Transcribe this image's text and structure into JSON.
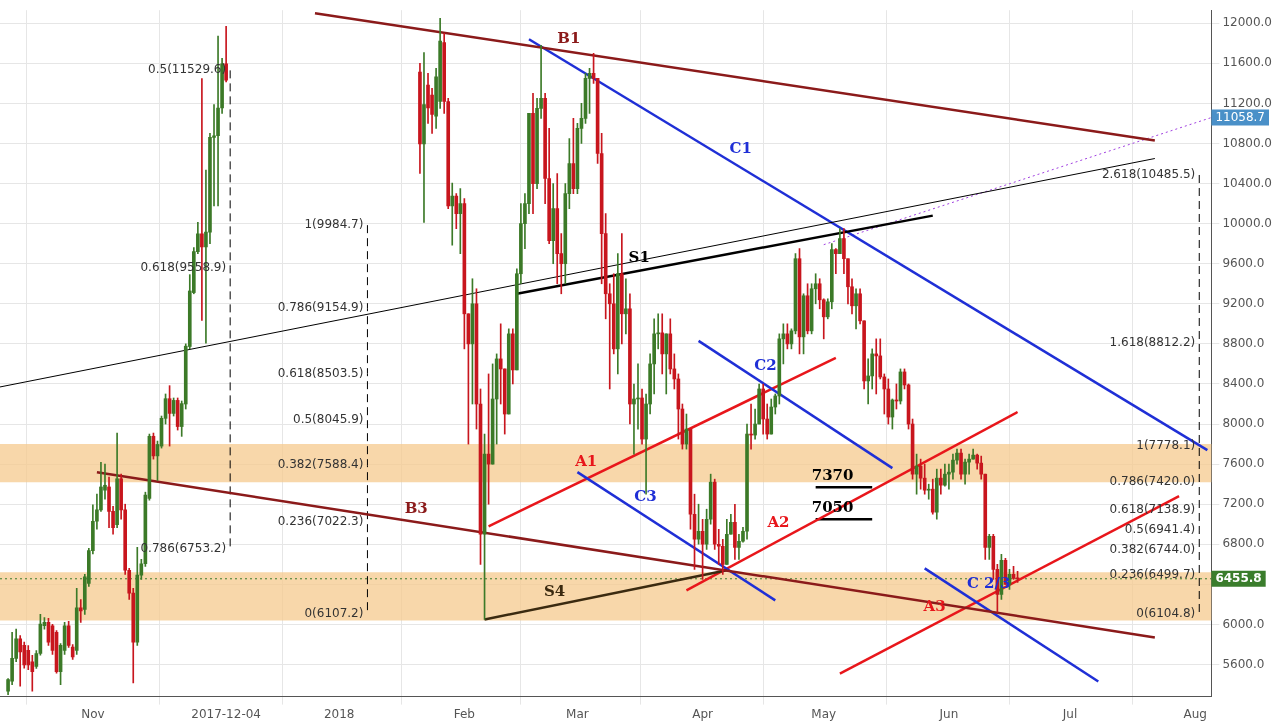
{
  "chart_data": {
    "type": "candlestick",
    "xlim": [
      "2017-10-09",
      "2018-08-05"
    ],
    "ylim": [
      5280,
      12130
    ],
    "xticks": [
      {
        "value": "2017-11-01",
        "label": "Nov"
      },
      {
        "value": "2017-12-04",
        "label": "2017-12-04"
      },
      {
        "value": "2018-01-01",
        "label": "2018"
      },
      {
        "value": "2018-02-01",
        "label": "Feb"
      },
      {
        "value": "2018-03-01",
        "label": "Mar"
      },
      {
        "value": "2018-04-01",
        "label": "Apr"
      },
      {
        "value": "2018-05-01",
        "label": "May"
      },
      {
        "value": "2018-06-01",
        "label": "Jun"
      },
      {
        "value": "2018-07-01",
        "label": "Jul"
      },
      {
        "value": "2018-08-01",
        "label": "Aug"
      }
    ],
    "yticks": [
      {
        "value": 5600,
        "label": "5600.0"
      },
      {
        "value": 6000,
        "label": "6000.0"
      },
      {
        "value": 6400,
        "label": null
      },
      {
        "value": 6800,
        "label": "6800.0"
      },
      {
        "value": 7200,
        "label": "7200.0"
      },
      {
        "value": 7600,
        "label": "7600.0"
      },
      {
        "value": 8000,
        "label": "8000.0"
      },
      {
        "value": 8400,
        "label": "8400.0"
      },
      {
        "value": 8800,
        "label": "8800.0"
      },
      {
        "value": 9200,
        "label": "9200.0"
      },
      {
        "value": 9600,
        "label": "9600.0"
      },
      {
        "value": 10000,
        "label": "10000.0"
      },
      {
        "value": 10400,
        "label": "10400.0"
      },
      {
        "value": 10800,
        "label": "10800.0"
      },
      {
        "value": 11200,
        "label": "11200.0"
      },
      {
        "value": 11600,
        "label": "11600.0"
      },
      {
        "value": 12000,
        "label": "12000.0"
      }
    ],
    "grid": true,
    "legend": false,
    "series": [
      {
        "color": "#3c7a28",
        "x": [
          "2017-10-11",
          "2017-10-12",
          "2017-10-13",
          "2017-10-18",
          "2017-10-19",
          "2017-10-20",
          "2017-10-24",
          "2017-10-25",
          "2017-10-28",
          "2017-10-30",
          "2017-10-31",
          "2017-11-01",
          "2017-11-02",
          "2017-11-03",
          "2017-11-04",
          "2017-11-07",
          "2017-11-12",
          "2017-11-13",
          "2017-11-14",
          "2017-11-15",
          "2017-11-17",
          "2017-11-18",
          "2017-11-19",
          "2017-11-21",
          "2017-11-23",
          "2017-11-24",
          "2017-11-25",
          "2017-11-26",
          "2017-11-27",
          "2017-11-29",
          "2017-11-30",
          "2017-12-01",
          "2017-12-02",
          "2017-12-03",
          "2018-01-22",
          "2018-01-25",
          "2018-01-26",
          "2018-01-29",
          "2018-01-31",
          "2018-02-03",
          "2018-02-06",
          "2018-02-08",
          "2018-02-09",
          "2018-02-12",
          "2018-02-14",
          "2018-02-15",
          "2018-02-16",
          "2018-02-17",
          "2018-02-19",
          "2018-02-20",
          "2018-02-23",
          "2018-02-26",
          "2018-02-27",
          "2018-03-01",
          "2018-03-02",
          "2018-03-03",
          "2018-03-04",
          "2018-03-11",
          "2018-03-13",
          "2018-03-15",
          "2018-03-16",
          "2018-03-18",
          "2018-03-19",
          "2018-03-20",
          "2018-03-21",
          "2018-03-23",
          "2018-03-28",
          "2018-03-31",
          "2018-04-02",
          "2018-04-03",
          "2018-04-07",
          "2018-04-08",
          "2018-04-10",
          "2018-04-11",
          "2018-04-12",
          "2018-04-14",
          "2018-04-15",
          "2018-04-18",
          "2018-04-19",
          "2018-04-20",
          "2018-04-21",
          "2018-04-23",
          "2018-04-24",
          "2018-04-26",
          "2018-04-28",
          "2018-04-29",
          "2018-05-02",
          "2018-05-03",
          "2018-05-05",
          "2018-05-09",
          "2018-05-12",
          "2018-05-13",
          "2018-05-18",
          "2018-05-20",
          "2018-05-24",
          "2018-05-27",
          "2018-05-29",
          "2018-05-31",
          "2018-06-01",
          "2018-06-02",
          "2018-06-03",
          "2018-06-05",
          "2018-06-06",
          "2018-06-07",
          "2018-06-11",
          "2018-06-14",
          "2018-06-16"
        ],
        "ohlc": [
          [
            5335,
            5460,
            5300,
            5449
          ],
          [
            5433,
            5922,
            5400,
            5661
          ],
          [
            5661,
            5954,
            5628,
            5856
          ],
          [
            5580,
            5740,
            5560,
            5710
          ],
          [
            5710,
            6100,
            5693,
            6003
          ],
          [
            5987,
            6068,
            5954,
            6020
          ],
          [
            5530,
            5810,
            5400,
            5791
          ],
          [
            5742,
            6020,
            5700,
            5987
          ],
          [
            5742,
            6360,
            5700,
            6166
          ],
          [
            6150,
            6500,
            6100,
            6476
          ],
          [
            6410,
            6760,
            6380,
            6737
          ],
          [
            6737,
            7193,
            6704,
            7030
          ],
          [
            7030,
            7300,
            6950,
            7144
          ],
          [
            7144,
            7617,
            7128,
            7372
          ],
          [
            7340,
            7600,
            7250,
            7389
          ],
          [
            6997,
            7910,
            6965,
            7454
          ],
          [
            5824,
            6769,
            5790,
            6492
          ],
          [
            6492,
            6650,
            6450,
            6606
          ],
          [
            6606,
            7320,
            6580,
            7291
          ],
          [
            7258,
            7900,
            7240,
            7878
          ],
          [
            7682,
            7830,
            7437,
            7796
          ],
          [
            7780,
            8080,
            7760,
            8057
          ],
          [
            8057,
            8300,
            8000,
            8253
          ],
          [
            8106,
            8260,
            8080,
            8236
          ],
          [
            7975,
            8230,
            7877,
            8204
          ],
          [
            8200,
            8800,
            8150,
            8777
          ],
          [
            8774,
            9491,
            8750,
            9328
          ],
          [
            9312,
            9760,
            9300,
            9720
          ],
          [
            9720,
            10013,
            9700,
            9899
          ],
          [
            9768,
            10535,
            8807,
            9915
          ],
          [
            9915,
            10900,
            9800,
            10861
          ],
          [
            10861,
            11187,
            10176,
            10877
          ],
          [
            10877,
            11871,
            10176,
            11154
          ],
          [
            11154,
            11650,
            11100,
            11594
          ],
          [
            10795,
            11708,
            10013,
            11187
          ],
          [
            11072,
            11550,
            10950,
            11464
          ],
          [
            11219,
            12050,
            11150,
            11822
          ],
          [
            10176,
            10404,
            9785,
            10274
          ],
          [
            10100,
            10350,
            9700,
            10200
          ],
          [
            8800,
            9450,
            8200,
            9200
          ],
          [
            6900,
            7900,
            6050,
            7700
          ],
          [
            7600,
            8600,
            7600,
            8250
          ],
          [
            8250,
            8700,
            7800,
            8650
          ],
          [
            8100,
            8950,
            8100,
            8900
          ],
          [
            8540,
            9550,
            8540,
            9500
          ],
          [
            9500,
            10200,
            9400,
            10000
          ],
          [
            10000,
            10300,
            9750,
            10200
          ],
          [
            10200,
            11100,
            10100,
            11100
          ],
          [
            10400,
            11250,
            10350,
            11150
          ],
          [
            11150,
            11780,
            11050,
            11250
          ],
          [
            9830,
            10400,
            9600,
            10150
          ],
          [
            9600,
            10400,
            9400,
            10300
          ],
          [
            10300,
            10850,
            10150,
            10600
          ],
          [
            10350,
            11000,
            10300,
            10950
          ],
          [
            10950,
            11200,
            10800,
            11050
          ],
          [
            11050,
            11500,
            11000,
            11450
          ],
          [
            11450,
            11550,
            11100,
            11500
          ],
          [
            8750,
            9700,
            8500,
            9500
          ],
          [
            9100,
            9450,
            8900,
            9150
          ],
          [
            8200,
            8400,
            7700,
            8250
          ],
          [
            8250,
            8600,
            7950,
            8260
          ],
          [
            7850,
            8300,
            7300,
            8200
          ],
          [
            8200,
            8700,
            8100,
            8600
          ],
          [
            8600,
            9050,
            8300,
            8900
          ],
          [
            8900,
            9100,
            8750,
            8910
          ],
          [
            8700,
            8900,
            8300,
            8900
          ],
          [
            7800,
            8100,
            7750,
            7950
          ],
          [
            6850,
            7200,
            6800,
            6930
          ],
          [
            6800,
            7150,
            6750,
            7050
          ],
          [
            7050,
            7500,
            7000,
            7420
          ],
          [
            6600,
            7050,
            6600,
            6900
          ],
          [
            6900,
            7100,
            6900,
            7020
          ],
          [
            6770,
            6900,
            6650,
            6830
          ],
          [
            6830,
            6970,
            6820,
            6930
          ],
          [
            6930,
            8000,
            6850,
            7900
          ],
          [
            7890,
            8150,
            7850,
            8000
          ],
          [
            8000,
            8400,
            8000,
            8350
          ],
          [
            7900,
            8250,
            7900,
            8170
          ],
          [
            8170,
            8300,
            8100,
            8280
          ],
          [
            8280,
            8900,
            8200,
            8850
          ],
          [
            8850,
            9000,
            8600,
            8900
          ],
          [
            8800,
            8950,
            8750,
            8930
          ],
          [
            8930,
            9700,
            8900,
            9650
          ],
          [
            8870,
            9300,
            8700,
            9280
          ],
          [
            8930,
            9400,
            8900,
            9350
          ],
          [
            9350,
            9500,
            9200,
            9400
          ],
          [
            9070,
            9250,
            9050,
            9220
          ],
          [
            9220,
            9800,
            9150,
            9740
          ],
          [
            9700,
            9950,
            9700,
            9850
          ],
          [
            9180,
            9350,
            8950,
            9300
          ],
          [
            8430,
            8650,
            8200,
            8480
          ],
          [
            8480,
            8750,
            8350,
            8700
          ],
          [
            8070,
            8250,
            7950,
            8240
          ],
          [
            8230,
            8550,
            8200,
            8520
          ],
          [
            7500,
            7700,
            7300,
            7580
          ],
          [
            7340,
            7400,
            7250,
            7350
          ],
          [
            7120,
            7550,
            7050,
            7460
          ],
          [
            7390,
            7600,
            7380,
            7500
          ],
          [
            7500,
            7600,
            7350,
            7520
          ],
          [
            7520,
            7700,
            7450,
            7640
          ],
          [
            7640,
            7750,
            7600,
            7710
          ],
          [
            7500,
            7650,
            7400,
            7620
          ],
          [
            7620,
            7700,
            7500,
            7650
          ],
          [
            7650,
            7750,
            7650,
            7690
          ],
          [
            6770,
            6900,
            6650,
            6880
          ],
          [
            6300,
            6700,
            6250,
            6640
          ],
          [
            6400,
            6550,
            6350,
            6500
          ]
        ]
      },
      {
        "color": "#c8161e",
        "x": [
          "2017-10-14",
          "2017-10-15",
          "2017-10-16",
          "2017-10-17",
          "2017-10-21",
          "2017-10-22",
          "2017-10-23",
          "2017-10-26",
          "2017-10-27",
          "2017-10-29",
          "2017-11-05",
          "2017-11-06",
          "2017-11-08",
          "2017-11-09",
          "2017-11-10",
          "2017-11-11",
          "2017-11-16",
          "2017-11-20",
          "2017-11-22",
          "2017-11-28",
          "2017-12-04",
          "2018-01-21",
          "2018-01-23",
          "2018-01-24",
          "2018-01-27",
          "2018-01-28",
          "2018-01-30",
          "2018-02-01",
          "2018-02-02",
          "2018-02-04",
          "2018-02-05",
          "2018-02-07",
          "2018-02-10",
          "2018-02-11",
          "2018-02-13",
          "2018-02-18",
          "2018-02-21",
          "2018-02-22",
          "2018-02-24",
          "2018-02-25",
          "2018-02-28",
          "2018-03-05",
          "2018-03-06",
          "2018-03-07",
          "2018-03-08",
          "2018-03-09",
          "2018-03-10",
          "2018-03-12",
          "2018-03-14",
          "2018-03-17",
          "2018-03-22",
          "2018-03-24",
          "2018-03-25",
          "2018-03-26",
          "2018-03-27",
          "2018-03-29",
          "2018-03-30",
          "2018-04-01",
          "2018-04-04",
          "2018-04-05",
          "2018-04-06",
          "2018-04-09",
          "2018-04-13",
          "2018-04-16",
          "2018-04-17",
          "2018-04-22",
          "2018-04-25",
          "2018-04-27",
          "2018-04-30",
          "2018-05-01",
          "2018-05-04",
          "2018-05-06",
          "2018-05-07",
          "2018-05-08",
          "2018-05-10",
          "2018-05-11",
          "2018-05-14",
          "2018-05-15",
          "2018-05-16",
          "2018-05-17",
          "2018-05-19",
          "2018-05-21",
          "2018-05-22",
          "2018-05-23",
          "2018-05-25",
          "2018-05-26",
          "2018-05-28",
          "2018-05-30",
          "2018-06-04",
          "2018-06-08",
          "2018-06-09",
          "2018-06-10",
          "2018-06-12",
          "2018-06-13",
          "2018-06-15",
          "2018-06-17",
          "2018-06-18"
        ],
        "ohlc": [
          [
            5856,
            5889,
            5384,
            5726
          ],
          [
            5791,
            5824,
            5563,
            5596
          ],
          [
            5742,
            5790,
            5550,
            5596
          ],
          [
            5628,
            5693,
            5335,
            5530
          ],
          [
            6020,
            6060,
            5790,
            5824
          ],
          [
            5987,
            6000,
            5700,
            5742
          ],
          [
            5922,
            5940,
            5514,
            5530
          ],
          [
            5987,
            6030,
            5770,
            5791
          ],
          [
            5775,
            5800,
            5650,
            5677
          ],
          [
            6166,
            6248,
            6020,
            6134
          ],
          [
            7372,
            7470,
            6965,
            7128
          ],
          [
            7128,
            7180,
            6900,
            6965
          ],
          [
            7454,
            7500,
            7050,
            7144
          ],
          [
            7144,
            7200,
            6500,
            6541
          ],
          [
            6541,
            6560,
            6250,
            6313
          ],
          [
            6313,
            6360,
            5416,
            5824
          ],
          [
            7878,
            7910,
            7650,
            7682
          ],
          [
            8253,
            8383,
            7780,
            8106
          ],
          [
            8236,
            8260,
            7940,
            7975
          ],
          [
            9899,
            11447,
            9035,
            9768
          ],
          [
            11594,
            11969,
            11415,
            11431
          ],
          [
            11513,
            11600,
            10500,
            10795
          ],
          [
            11382,
            11500,
            11000,
            11154
          ],
          [
            11284,
            11350,
            10900,
            11089
          ],
          [
            11806,
            11900,
            11100,
            11219
          ],
          [
            11219,
            11250,
            10150,
            10176
          ],
          [
            10274,
            10300,
            9950,
            10100
          ],
          [
            10200,
            10250,
            8750,
            9100
          ],
          [
            9100,
            9100,
            7800,
            8800
          ],
          [
            9200,
            9350,
            7950,
            8200
          ],
          [
            8200,
            8350,
            6600,
            6900
          ],
          [
            7700,
            8500,
            7200,
            7600
          ],
          [
            8650,
            9000,
            8200,
            8550
          ],
          [
            8550,
            8550,
            7900,
            8100
          ],
          [
            8900,
            8950,
            8400,
            8540
          ],
          [
            11100,
            11300,
            10100,
            10400
          ],
          [
            11250,
            11300,
            10200,
            10450
          ],
          [
            10450,
            10950,
            9800,
            9830
          ],
          [
            10150,
            10500,
            9400,
            9700
          ],
          [
            9700,
            9900,
            9300,
            9600
          ],
          [
            10600,
            11050,
            10300,
            10350
          ],
          [
            11500,
            11700,
            11400,
            11450
          ],
          [
            11450,
            11450,
            10600,
            10700
          ],
          [
            10700,
            10900,
            9400,
            9900
          ],
          [
            9900,
            10100,
            9050,
            9300
          ],
          [
            9300,
            9400,
            8350,
            9200
          ],
          [
            9200,
            9500,
            8700,
            8750
          ],
          [
            9500,
            9900,
            8800,
            9100
          ],
          [
            9150,
            9300,
            8000,
            8200
          ],
          [
            8260,
            8350,
            7800,
            7850
          ],
          [
            8910,
            9100,
            8500,
            8700
          ],
          [
            8900,
            9050,
            8500,
            8550
          ],
          [
            8550,
            8700,
            8350,
            8450
          ],
          [
            8450,
            8500,
            7850,
            8150
          ],
          [
            8150,
            8200,
            7750,
            7800
          ],
          [
            7950,
            7950,
            6950,
            7100
          ],
          [
            7100,
            7300,
            6550,
            6850
          ],
          [
            6930,
            7050,
            6450,
            6800
          ],
          [
            7420,
            7450,
            6750,
            6800
          ],
          [
            6800,
            6950,
            6600,
            6780
          ],
          [
            6780,
            6850,
            6500,
            6600
          ],
          [
            7020,
            7200,
            6650,
            6770
          ],
          [
            7900,
            8200,
            7750,
            7890
          ],
          [
            8350,
            8400,
            7900,
            8050
          ],
          [
            8050,
            8200,
            7850,
            7900
          ],
          [
            8900,
            9000,
            8750,
            8800
          ],
          [
            9650,
            9750,
            8700,
            8870
          ],
          [
            9280,
            9400,
            8900,
            8930
          ],
          [
            9400,
            9450,
            9150,
            9240
          ],
          [
            9240,
            9250,
            8850,
            9070
          ],
          [
            9740,
            9750,
            9500,
            9700
          ],
          [
            9850,
            9950,
            9500,
            9650
          ],
          [
            9650,
            9650,
            9200,
            9370
          ],
          [
            9370,
            9450,
            9100,
            9180
          ],
          [
            9300,
            9350,
            9000,
            9030
          ],
          [
            9030,
            9030,
            8350,
            8430
          ],
          [
            8700,
            8850,
            8300,
            8680
          ],
          [
            8680,
            8850,
            8450,
            8470
          ],
          [
            8470,
            8500,
            8100,
            8350
          ],
          [
            8350,
            8450,
            8000,
            8070
          ],
          [
            8240,
            8400,
            8150,
            8230
          ],
          [
            8520,
            8550,
            8350,
            8390
          ],
          [
            8390,
            8400,
            7950,
            8000
          ],
          [
            8000,
            8050,
            7450,
            7500
          ],
          [
            7580,
            7650,
            7350,
            7460
          ],
          [
            7460,
            7600,
            7300,
            7340
          ],
          [
            7350,
            7450,
            7100,
            7120
          ],
          [
            7460,
            7550,
            7300,
            7390
          ],
          [
            7710,
            7750,
            7450,
            7500
          ],
          [
            7690,
            7700,
            7550,
            7610
          ],
          [
            7610,
            7680,
            7450,
            7500
          ],
          [
            7500,
            7500,
            6650,
            6770
          ],
          [
            6880,
            6900,
            6450,
            6550
          ],
          [
            6550,
            6600,
            6120,
            6300
          ],
          [
            6640,
            6660,
            6400,
            6400
          ],
          [
            6500,
            6580,
            6450,
            6460
          ],
          [
            6460,
            6530,
            6420,
            6455.8
          ]
        ]
      },
      {
        "type": "line",
        "color": "#000000",
        "x": [
          "2017-10-09",
          "2018-07-22"
        ],
        "values": [
          8370,
          10650
        ]
      },
      {
        "type": "line",
        "name": "B1",
        "color": "#8b1a1a",
        "x": [
          "2017-12-26",
          "2018-07-22"
        ],
        "values": [
          12100,
          10830
        ]
      },
      {
        "type": "line",
        "name": "B3",
        "color": "#8b1a1a",
        "x": [
          "2017-11-02",
          "2018-07-22"
        ],
        "values": [
          7520,
          5870
        ]
      },
      {
        "type": "line",
        "name": "S1",
        "color": "#000000",
        "x": [
          "2018-02-14",
          "2018-05-28"
        ],
        "values": [
          9300,
          10080
        ]
      },
      {
        "type": "line",
        "name": "S4",
        "color": "#3b2a10",
        "x": [
          "2018-02-06",
          "2018-04-07"
        ],
        "values": [
          6050,
          6540
        ]
      },
      {
        "type": "line",
        "name": "C1",
        "color": "#1f2fd6",
        "x": [
          "2018-02-17",
          "2018-08-04"
        ],
        "values": [
          11840,
          7740
        ]
      },
      {
        "type": "line",
        "name": "C2",
        "color": "#1f2fd6",
        "x": [
          "2018-03-31",
          "2018-05-18"
        ],
        "values": [
          8830,
          7560
        ]
      },
      {
        "type": "line",
        "name": "C3",
        "color": "#1f2fd6",
        "x": [
          "2018-03-01",
          "2018-04-19"
        ],
        "values": [
          7520,
          6240
        ]
      },
      {
        "type": "line",
        "name": "C 2/3",
        "color": "#1f2fd6",
        "x": [
          "2018-05-26",
          "2018-07-08"
        ],
        "values": [
          6560,
          5430
        ]
      },
      {
        "type": "line",
        "name": "A1",
        "color": "#e8161b",
        "x": [
          "2018-02-07",
          "2018-05-04"
        ],
        "values": [
          6980,
          8660
        ]
      },
      {
        "type": "line",
        "name": "A2",
        "color": "#e8161b",
        "x": [
          "2018-03-28",
          "2018-06-18"
        ],
        "values": [
          6340,
          8120
        ]
      },
      {
        "type": "line",
        "name": "A3",
        "color": "#e8161b",
        "x": [
          "2018-05-05",
          "2018-07-28"
        ],
        "values": [
          5510,
          7280
        ]
      },
      {
        "type": "line",
        "name": "7370",
        "color": "#000000",
        "x": [
          "2018-04-29",
          "2018-05-13"
        ],
        "values": [
          7370,
          7370
        ]
      },
      {
        "type": "line",
        "color": "#a040e0",
        "line_style": "dotted",
        "x": [
          "2018-05-01",
          "2018-08-05"
        ],
        "values": [
          9790,
          11058.7
        ]
      },
      {
        "type": "line",
        "name": "7050",
        "color": "#000000",
        "x": [
          "2018-04-29",
          "2018-05-13"
        ],
        "values": [
          7050,
          7050
        ]
      },
      {
        "type": "line",
        "color": "#000000",
        "line_style": "dashed",
        "x": [
          "2017-12-05",
          "2017-12-05",
          "2017-12-05"
        ],
        "values": [
          11529.6,
          9558.9,
          6753.2
        ],
        "value_labels": [
          "0.5(11529.6)",
          "0.618(9558.9)",
          "0.786(6753.2)"
        ]
      },
      {
        "type": "line",
        "color": "#000000",
        "line_style": "dashed",
        "x": [
          "2018-01-08",
          "2018-01-08",
          "2018-01-08",
          "2018-01-08",
          "2018-01-08",
          "2018-01-08",
          "2018-01-08"
        ],
        "values": [
          9984.7,
          9154.9,
          8503.5,
          8045.9,
          7588.4,
          7022.3,
          6107.2
        ],
        "value_labels": [
          "1(9984.7)",
          "0.786(9154.9)",
          "0.618(8503.5)",
          "0.5(8045.9)",
          "0.382(7588.4)",
          "0.236(7022.3)",
          "0(6107.2)"
        ]
      },
      {
        "type": "line",
        "color": "#000000",
        "line_style": "dashed",
        "x": [
          "2018-08-02",
          "2018-08-02",
          "2018-08-02",
          "2018-08-02",
          "2018-08-02",
          "2018-08-02",
          "2018-08-02",
          "2018-08-02",
          "2018-08-02"
        ],
        "values": [
          10485.5,
          8812.2,
          7778.1,
          7420.0,
          7138.9,
          6941.4,
          6744.0,
          6499.7,
          6104.8
        ],
        "value_labels": [
          "2.618(10485.5)",
          "1.618(8812.2)",
          "1(7778.1)",
          "0.786(7420.0)",
          "0.618(7138.9)",
          "0.5(6941.4)",
          "0.382(6744.0)",
          "0.236(6499.7)",
          "0(6104.8)"
        ]
      }
    ],
    "bands": [
      {
        "axis": "y",
        "from": 7420,
        "to": 7800,
        "color": "#f6c98e"
      },
      {
        "axis": "y",
        "from": 6040,
        "to": 6520,
        "color": "#f6c98e"
      }
    ],
    "ref_lines": [
      {
        "axis": "y",
        "value": 6455.8,
        "label": "6455.8",
        "color": "#3a7d2c",
        "line_style": "dotted"
      }
    ],
    "annotations": [
      {
        "text": "11058.7",
        "x": "2018-08-05",
        "y": 11058.7
      }
    ]
  }
}
